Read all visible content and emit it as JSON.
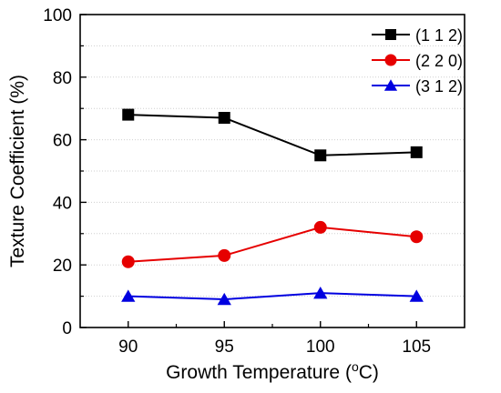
{
  "chart_data": {
    "type": "line",
    "title": "",
    "xlabel": "Growth Temperature (",
    "xlabel_sup": "o",
    "xlabel_suffix": "C)",
    "ylabel": "Texture Coefficient (%)",
    "x": [
      90,
      95,
      100,
      105
    ],
    "xticks": [
      "90",
      "95",
      "100",
      "105"
    ],
    "xlim": [
      87.5,
      107.5
    ],
    "ylim": [
      0,
      100
    ],
    "yticks": [
      "0",
      "20",
      "40",
      "60",
      "80",
      "100"
    ],
    "grid": "horizontal-dotted",
    "legend_position": "top-right",
    "series": [
      {
        "name": "(1 1 2)",
        "color": "#000000",
        "marker": "square",
        "values": [
          68,
          67,
          55,
          56
        ]
      },
      {
        "name": "(2 2 0)",
        "color": "#e60000",
        "marker": "circle",
        "values": [
          21,
          23,
          32,
          29
        ]
      },
      {
        "name": "(3 1 2)",
        "color": "#0000e0",
        "marker": "triangle",
        "values": [
          10,
          9,
          11,
          10
        ]
      }
    ]
  }
}
